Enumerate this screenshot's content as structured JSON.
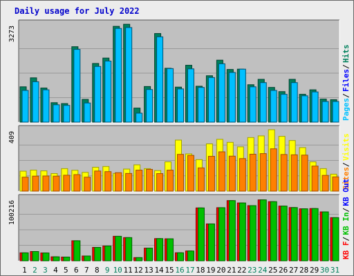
{
  "title": "Daily usage for July 2022",
  "colors": {
    "hits": "#00805c",
    "files": "#0000ff",
    "pages": "#00c0ff",
    "visits": "#ffff00",
    "sites": "#ff8000",
    "kb_f": "#ff0000",
    "kb_in": "#00c000",
    "kb_out": "#0000ff",
    "panel_bg": "#c0c0c0",
    "gridline": "#999999"
  },
  "chart_data": [
    {
      "type": "bar",
      "panel": "top",
      "y_max_label": "3273",
      "ylim": [
        0,
        3273
      ],
      "legend": [
        "Pages",
        "Files",
        "Hits"
      ],
      "legend_colors": [
        "#00c0ff",
        "#0000ff",
        "#00805c"
      ],
      "categories": [
        "1",
        "2",
        "3",
        "4",
        "5",
        "6",
        "7",
        "8",
        "9",
        "10",
        "11",
        "12",
        "13",
        "14",
        "15",
        "16",
        "17",
        "18",
        "19",
        "20",
        "21",
        "22",
        "23",
        "24",
        "25",
        "26",
        "27",
        "28",
        "29",
        "30",
        "31"
      ],
      "series": [
        {
          "name": "Hits",
          "values": [
            1180,
            1480,
            1140,
            650,
            620,
            2520,
            760,
            1960,
            2140,
            3200,
            3270,
            470,
            1190,
            2960,
            1800,
            1170,
            1900,
            1200,
            1550,
            2070,
            1760,
            1770,
            1250,
            1430,
            1160,
            1020,
            1430,
            930,
            1080,
            770,
            750
          ]
        },
        {
          "name": "Pages",
          "values": [
            1060,
            1350,
            1080,
            580,
            560,
            2430,
            640,
            1860,
            2040,
            3130,
            3160,
            300,
            1090,
            2850,
            1790,
            1110,
            1780,
            1160,
            1490,
            1950,
            1660,
            1770,
            1180,
            1320,
            1060,
            930,
            1320,
            880,
            1010,
            690,
            690
          ]
        }
      ]
    },
    {
      "type": "bar",
      "panel": "middle",
      "y_max_label": "409",
      "ylim": [
        0,
        409
      ],
      "legend": [
        "Sites",
        "Visits"
      ],
      "legend_colors": [
        "#ff8000",
        "#ffff00"
      ],
      "categories": [
        "1",
        "2",
        "3",
        "4",
        "5",
        "6",
        "7",
        "8",
        "9",
        "10",
        "11",
        "12",
        "13",
        "14",
        "15",
        "16",
        "17",
        "18",
        "19",
        "20",
        "21",
        "22",
        "23",
        "24",
        "25",
        "26",
        "27",
        "28",
        "29",
        "30",
        "31"
      ],
      "series": [
        {
          "name": "Visits",
          "values": [
            133,
            140,
            135,
            117,
            150,
            139,
            125,
            159,
            164,
            118,
            147,
            175,
            150,
            137,
            195,
            340,
            248,
            210,
            315,
            345,
            325,
            295,
            357,
            368,
            409,
            365,
            337,
            290,
            195,
            150,
            113
          ]
        },
        {
          "name": "Sites",
          "values": [
            93,
            100,
            101,
            100,
            106,
            110,
            93,
            134,
            130,
            123,
            118,
            140,
            145,
            117,
            140,
            245,
            238,
            155,
            232,
            262,
            233,
            217,
            246,
            250,
            282,
            244,
            242,
            240,
            167,
            105,
            95
          ]
        }
      ]
    },
    {
      "type": "bar",
      "panel": "bottom",
      "y_max_label": "100216",
      "ylim": [
        0,
        100216
      ],
      "legend": [
        "KB F",
        "KB In",
        "KB Out"
      ],
      "legend_colors": [
        "#ff0000",
        "#00c000",
        "#0000ff"
      ],
      "categories": [
        "1",
        "2",
        "3",
        "4",
        "5",
        "6",
        "7",
        "8",
        "9",
        "10",
        "11",
        "12",
        "13",
        "14",
        "15",
        "16",
        "17",
        "18",
        "19",
        "20",
        "21",
        "22",
        "23",
        "24",
        "25",
        "26",
        "27",
        "28",
        "29",
        "30",
        "31"
      ],
      "series": [
        {
          "name": "KB F",
          "values": [
            12900,
            15000,
            12700,
            6500,
            6100,
            32400,
            7800,
            21700,
            23900,
            39600,
            37500,
            5200,
            20500,
            35900,
            35600,
            13000,
            15900,
            85400,
            59600,
            85800,
            97200,
            93400,
            89100,
            98400,
            95500,
            88400,
            86000,
            84000,
            84400,
            79000,
            69700
          ]
        },
        {
          "name": "KB In",
          "values": [
            12900,
            15000,
            12700,
            6500,
            6100,
            32400,
            7800,
            21700,
            23900,
            39600,
            37500,
            5200,
            20500,
            35900,
            35600,
            13000,
            15900,
            85400,
            59600,
            85800,
            97200,
            93400,
            89100,
            98400,
            95500,
            88400,
            86000,
            84000,
            84400,
            79000,
            69700
          ]
        }
      ]
    }
  ]
}
